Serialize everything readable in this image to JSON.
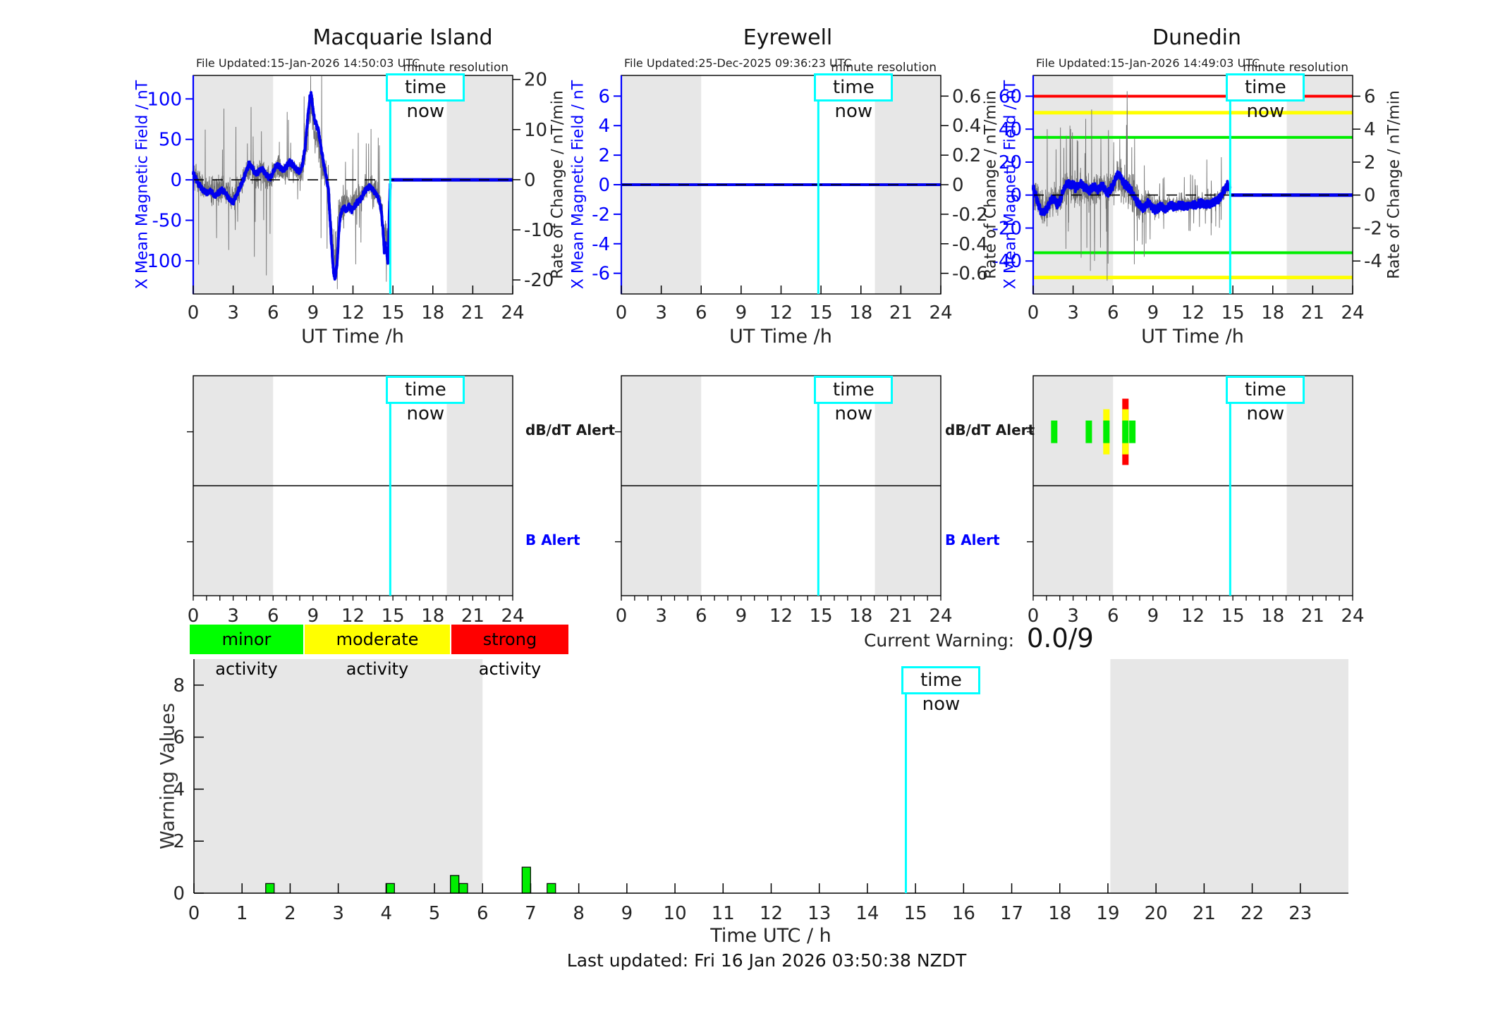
{
  "ui": {
    "time_now_label": "time now",
    "minute_resolution_label": "minute resolution",
    "current_warning_label": "Current Warning:",
    "current_warning_value": "0.0/9",
    "footer": "Last updated: Fri 16 Jan 2026 03:50:38 NZDT",
    "alert_row_labels": {
      "db_dt": "dB/dT Alert",
      "b": "B Alert"
    },
    "legend": [
      {
        "label": "minor activity",
        "color": "#00ff00"
      },
      {
        "label": "moderate activity",
        "color": "#ffff00"
      },
      {
        "label": "strong activity",
        "color": "#ff0000"
      }
    ]
  },
  "colors": {
    "mean_line": "#0000ee",
    "noise_line": "#707070",
    "time_now": "#00ffff",
    "night_band": "#e7e7e7",
    "minor": "#00ee00",
    "moderate": "#ffff00",
    "strong": "#ff0000",
    "axis_blue": "#0000ff",
    "axis_dark": "#262626"
  },
  "chart_data": [
    {
      "id": "macquarie",
      "type": "line",
      "title": "Macquarie Island",
      "file_updated": "File Updated:15-Jan-2026 14:50:03 UTC",
      "x": {
        "label": "UT Time /h",
        "range": [
          0,
          24
        ],
        "ticks": [
          0,
          3,
          6,
          9,
          12,
          15,
          18,
          21,
          24
        ]
      },
      "y_left": {
        "label": "X Mean Magnetic Field / nT",
        "ticks": [
          100,
          50,
          0,
          -50,
          -100
        ],
        "range": [
          -141,
          129
        ]
      },
      "y_right": {
        "label": "Rate of Change / nT/min",
        "ticks": [
          20,
          10,
          0,
          -10,
          -20
        ],
        "range": [
          -22.8,
          20.8
        ]
      },
      "night_shading": [
        [
          0,
          6
        ],
        [
          19.05,
          24
        ]
      ],
      "time_now": 14.8,
      "data_end": 14.8,
      "thresholds": [],
      "mean_jitter": 3,
      "mean_anchors": [
        [
          0,
          8
        ],
        [
          0.2,
          2
        ],
        [
          0.4,
          -5
        ],
        [
          0.7,
          -12
        ],
        [
          1,
          -16
        ],
        [
          1.3,
          -14
        ],
        [
          1.6,
          -20
        ],
        [
          1.9,
          -16
        ],
        [
          2.2,
          -12
        ],
        [
          2.5,
          -18
        ],
        [
          2.8,
          -26
        ],
        [
          3,
          -28
        ],
        [
          3.2,
          -20
        ],
        [
          3.5,
          -10
        ],
        [
          3.8,
          2
        ],
        [
          4,
          12
        ],
        [
          4.2,
          20
        ],
        [
          4.4,
          16
        ],
        [
          4.6,
          10
        ],
        [
          4.8,
          8
        ],
        [
          5,
          12
        ],
        [
          5.2,
          14
        ],
        [
          5.4,
          8
        ],
        [
          5.6,
          4
        ],
        [
          5.8,
          2
        ],
        [
          6,
          10
        ],
        [
          6.2,
          16
        ],
        [
          6.4,
          18
        ],
        [
          6.6,
          14
        ],
        [
          6.8,
          12
        ],
        [
          7,
          16
        ],
        [
          7.2,
          22
        ],
        [
          7.4,
          20
        ],
        [
          7.6,
          16
        ],
        [
          7.8,
          12
        ],
        [
          8,
          10
        ],
        [
          8.2,
          18
        ],
        [
          8.4,
          40
        ],
        [
          8.6,
          75
        ],
        [
          8.75,
          100
        ],
        [
          8.85,
          107
        ],
        [
          9,
          88
        ],
        [
          9.1,
          75
        ],
        [
          9.25,
          68
        ],
        [
          9.4,
          62
        ],
        [
          9.55,
          45
        ],
        [
          9.7,
          30
        ],
        [
          9.85,
          15
        ],
        [
          10,
          2
        ],
        [
          10.15,
          -10
        ],
        [
          10.3,
          -55
        ],
        [
          10.45,
          -95
        ],
        [
          10.55,
          -115
        ],
        [
          10.65,
          -122
        ],
        [
          10.8,
          -105
        ],
        [
          10.9,
          -75
        ],
        [
          11,
          -50
        ],
        [
          11.15,
          -38
        ],
        [
          11.3,
          -34
        ],
        [
          11.5,
          -38
        ],
        [
          11.7,
          -32
        ],
        [
          11.9,
          -38
        ],
        [
          12.1,
          -34
        ],
        [
          12.3,
          -28
        ],
        [
          12.5,
          -26
        ],
        [
          12.7,
          -20
        ],
        [
          12.9,
          -14
        ],
        [
          13.1,
          -10
        ],
        [
          13.3,
          -8
        ],
        [
          13.5,
          -12
        ],
        [
          13.7,
          -16
        ],
        [
          13.9,
          -22
        ],
        [
          14.1,
          -35
        ],
        [
          14.25,
          -60
        ],
        [
          14.35,
          -88
        ],
        [
          14.45,
          -80
        ],
        [
          14.55,
          -92
        ],
        [
          14.62,
          -103
        ],
        [
          14.68,
          -80
        ],
        [
          14.73,
          -40
        ],
        [
          14.8,
          -5
        ]
      ],
      "noise": {
        "seed": 7,
        "std_segments": [
          [
            0,
            6,
            16
          ],
          [
            6,
            8,
            13
          ],
          [
            8,
            10,
            20
          ],
          [
            10,
            11,
            26
          ],
          [
            11,
            14.9,
            15
          ]
        ],
        "spike_prob": 0.03,
        "spike_scale": 3.4,
        "spikes": [
          [
            0.9,
            62
          ],
          [
            1.75,
            -72
          ],
          [
            2.3,
            88
          ],
          [
            3.15,
            -62
          ],
          [
            4.35,
            90
          ],
          [
            4.6,
            -95
          ],
          [
            5.5,
            -118
          ],
          [
            7.15,
            74
          ],
          [
            8.35,
            70
          ],
          [
            9,
            74
          ],
          [
            9.6,
            -72
          ],
          [
            10.05,
            -85
          ],
          [
            10.5,
            -112
          ],
          [
            11.3,
            -60
          ],
          [
            12.4,
            58
          ],
          [
            13,
            45
          ],
          [
            13.9,
            52
          ],
          [
            14.45,
            -82
          ]
        ]
      }
    },
    {
      "id": "eyrewell",
      "type": "line",
      "title": "Eyrewell",
      "file_updated": "File Updated:25-Dec-2025 09:36:23 UTC",
      "x": {
        "label": "UT Time /h",
        "range": [
          0,
          24
        ],
        "ticks": [
          0,
          3,
          6,
          9,
          12,
          15,
          18,
          21,
          24
        ]
      },
      "y_left": {
        "label": "X Mean Magnetic Field / nT",
        "ticks": [
          6,
          4,
          2,
          0,
          -2,
          -4,
          -6
        ],
        "range": [
          -7.4,
          7.4
        ]
      },
      "y_right": {
        "label": "Rate of Change / nT/min",
        "ticks": [
          0.6,
          0.4,
          0.2,
          0,
          -0.2,
          -0.4,
          -0.6
        ],
        "range": [
          -0.74,
          0.74
        ]
      },
      "night_shading": [
        [
          0,
          6
        ],
        [
          19.05,
          24
        ]
      ],
      "time_now": 14.8,
      "data_end": 24,
      "thresholds": [],
      "mean_jitter": 0,
      "mean_anchors": [
        [
          0,
          0
        ],
        [
          24,
          0
        ]
      ],
      "noise": null
    },
    {
      "id": "dunedin",
      "type": "line",
      "title": "Dunedin",
      "file_updated": "File Updated:15-Jan-2026 14:49:03 UTC",
      "x": {
        "label": "UT Time /h",
        "range": [
          0,
          24
        ],
        "ticks": [
          0,
          3,
          6,
          9,
          12,
          15,
          18,
          21,
          24
        ]
      },
      "y_left": {
        "label": "X Mean Magnetic Field / nT",
        "ticks": [
          60,
          40,
          20,
          0,
          -20,
          -40
        ],
        "range": [
          -60,
          72.6
        ]
      },
      "y_right": {
        "label": "Rate of Change / nT/min",
        "ticks": [
          6,
          4,
          2,
          0,
          -2,
          -4
        ],
        "range": [
          -6,
          7.26
        ]
      },
      "night_shading": [
        [
          0,
          6
        ],
        [
          19.05,
          24
        ]
      ],
      "time_now": 14.8,
      "data_end": 14.8,
      "thresholds": [
        {
          "value": 60,
          "level": "strong"
        },
        {
          "value": 50,
          "level": "moderate"
        },
        {
          "value": 35,
          "level": "minor"
        },
        {
          "value": -35,
          "level": "minor"
        },
        {
          "value": -50,
          "level": "moderate"
        }
      ],
      "mean_jitter": 2.2,
      "mean_anchors": [
        [
          0,
          4
        ],
        [
          0.2,
          0
        ],
        [
          0.4,
          -6
        ],
        [
          0.6,
          -10
        ],
        [
          0.8,
          -11
        ],
        [
          1,
          -9
        ],
        [
          1.2,
          -5
        ],
        [
          1.4,
          -3
        ],
        [
          1.6,
          -2
        ],
        [
          1.8,
          -6
        ],
        [
          2,
          -4
        ],
        [
          2.2,
          1
        ],
        [
          2.4,
          5
        ],
        [
          2.6,
          7
        ],
        [
          2.8,
          6
        ],
        [
          3,
          7
        ],
        [
          3.2,
          4
        ],
        [
          3.4,
          6
        ],
        [
          3.6,
          7
        ],
        [
          3.8,
          5
        ],
        [
          4,
          4
        ],
        [
          4.2,
          2
        ],
        [
          4.4,
          4
        ],
        [
          4.6,
          6
        ],
        [
          4.8,
          3
        ],
        [
          5,
          4
        ],
        [
          5.2,
          6
        ],
        [
          5.4,
          3
        ],
        [
          5.6,
          1
        ],
        [
          5.8,
          3
        ],
        [
          6,
          6
        ],
        [
          6.2,
          11
        ],
        [
          6.4,
          13
        ],
        [
          6.6,
          11
        ],
        [
          6.8,
          7
        ],
        [
          7,
          6
        ],
        [
          7.2,
          4
        ],
        [
          7.4,
          2
        ],
        [
          7.6,
          -1
        ],
        [
          7.8,
          -4
        ],
        [
          8,
          -6
        ],
        [
          8.2,
          -8
        ],
        [
          8.4,
          -7
        ],
        [
          8.6,
          -5
        ],
        [
          8.8,
          -6
        ],
        [
          9,
          -8
        ],
        [
          9.2,
          -9
        ],
        [
          9.4,
          -8
        ],
        [
          9.6,
          -7
        ],
        [
          9.8,
          -8
        ],
        [
          10,
          -8
        ],
        [
          10.3,
          -6
        ],
        [
          10.6,
          -7
        ],
        [
          11,
          -6
        ],
        [
          11.4,
          -7
        ],
        [
          11.8,
          -6
        ],
        [
          12.2,
          -6
        ],
        [
          12.6,
          -5
        ],
        [
          13,
          -6
        ],
        [
          13.4,
          -5
        ],
        [
          13.8,
          -4
        ],
        [
          14,
          -2
        ],
        [
          14.2,
          1
        ],
        [
          14.4,
          4
        ],
        [
          14.6,
          6
        ],
        [
          14.8,
          4
        ]
      ],
      "noise": {
        "seed": 13,
        "std_segments": [
          [
            0,
            6,
            9
          ],
          [
            6,
            8,
            11
          ],
          [
            8,
            9.5,
            8
          ],
          [
            9.5,
            14.9,
            4.5
          ]
        ],
        "spike_prob": 0.04,
        "spike_scale": 3,
        "spikes": [
          [
            1.05,
            40
          ],
          [
            2.05,
            41
          ],
          [
            2.5,
            36
          ],
          [
            2.95,
            38
          ],
          [
            3.6,
            -38
          ],
          [
            4.3,
            -46
          ],
          [
            5.55,
            -52
          ],
          [
            6.5,
            34
          ],
          [
            7.05,
            63
          ],
          [
            7.6,
            -42
          ],
          [
            8.2,
            -30
          ]
        ]
      }
    },
    {
      "id": "alerts",
      "type": "event-timeline",
      "rows": [
        {
          "key": "db_dt",
          "label": "dB/dT Alert"
        },
        {
          "key": "b",
          "label": "B Alert"
        }
      ],
      "x": {
        "range": [
          0,
          24
        ],
        "tick_labels": [
          0,
          3,
          6,
          9,
          12,
          15,
          18,
          21,
          24
        ]
      },
      "night_shading": [
        [
          0,
          6
        ],
        [
          19.05,
          24
        ]
      ],
      "time_now": 14.8,
      "panels": [
        {
          "station": "Macquarie Island",
          "db_dt_marks": [],
          "b_marks": []
        },
        {
          "station": "Eyrewell",
          "db_dt_marks": [],
          "b_marks": []
        },
        {
          "station": "Dunedin",
          "db_dt_marks": [
            {
              "t": 1.58,
              "level": "minor"
            },
            {
              "t": 4.18,
              "level": "minor"
            },
            {
              "t": 5.5,
              "level": "moderate"
            },
            {
              "t": 6.93,
              "level": "strong"
            },
            {
              "t": 7.45,
              "level": "minor"
            }
          ],
          "b_marks": []
        }
      ]
    },
    {
      "id": "warnings",
      "type": "bar",
      "ylabel": "Warning Values",
      "xlabel": "Time UTC / h",
      "ylim": [
        0,
        9
      ],
      "y_ticks": [
        0,
        2,
        4,
        6,
        8
      ],
      "x_tick_labels": [
        0,
        1,
        2,
        3,
        4,
        5,
        6,
        7,
        8,
        9,
        10,
        11,
        12,
        13,
        14,
        15,
        16,
        17,
        18,
        19,
        20,
        21,
        22,
        23
      ],
      "bars": [
        {
          "t": 1.58,
          "value": 0.37
        },
        {
          "t": 4.08,
          "value": 0.37
        },
        {
          "t": 5.42,
          "value": 0.68
        },
        {
          "t": 5.6,
          "value": 0.37
        },
        {
          "t": 6.91,
          "value": 1.0
        },
        {
          "t": 7.43,
          "value": 0.37
        }
      ],
      "night_shading": [
        [
          0,
          6
        ],
        [
          19.05,
          24
        ]
      ],
      "time_now": 14.8
    }
  ]
}
